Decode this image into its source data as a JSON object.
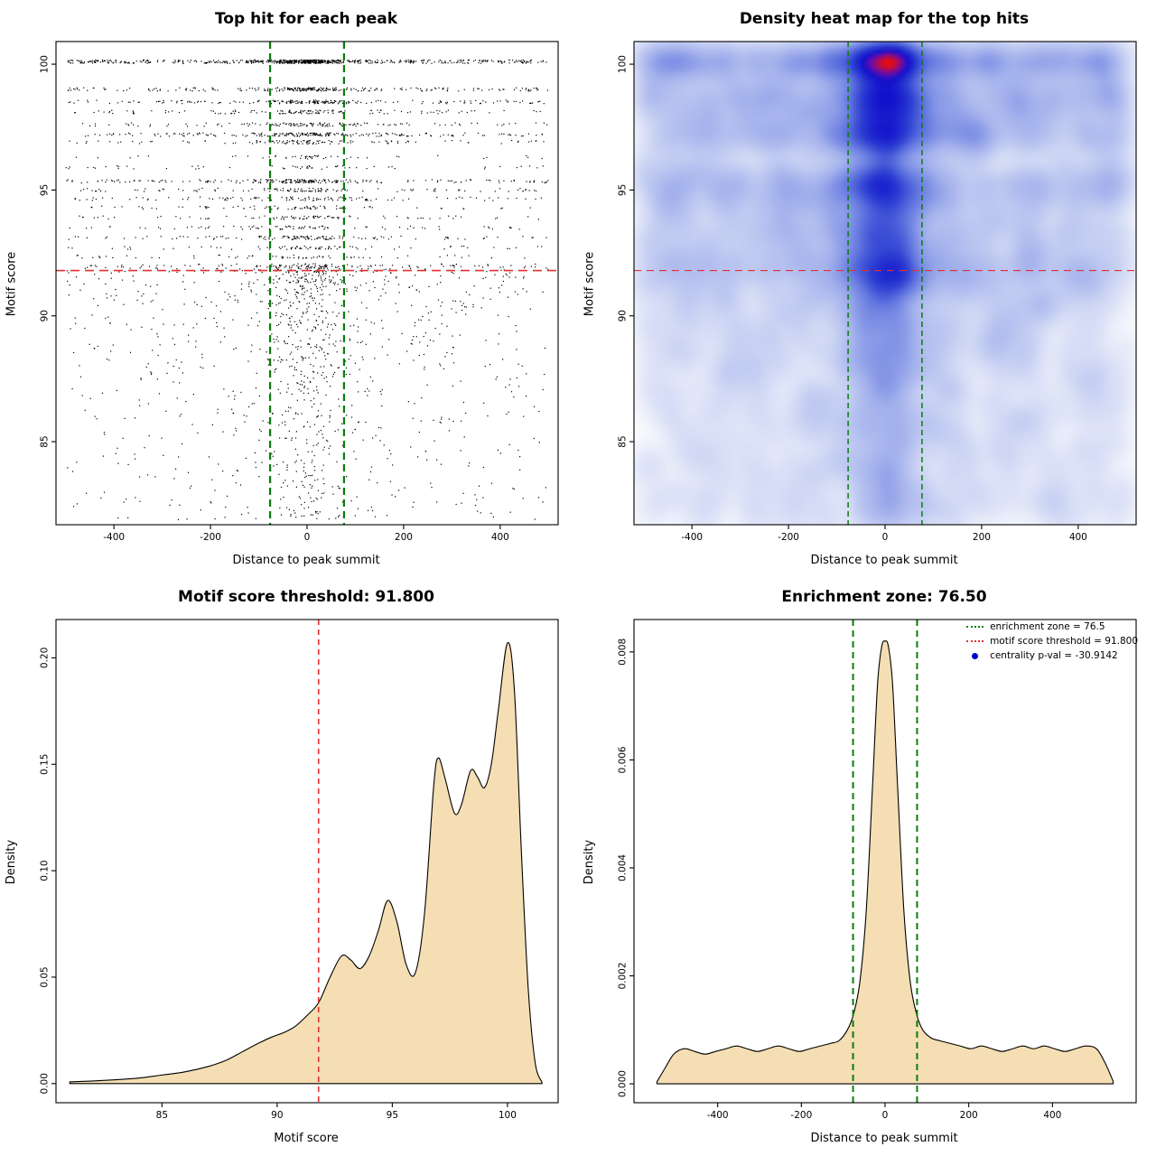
{
  "figure": {
    "background": "#ffffff",
    "layout": "2x2"
  },
  "chart_data": [
    {
      "type": "scatter",
      "title": "Top hit for each peak",
      "xlabel": "Distance to peak summit",
      "ylabel": "Motif score",
      "xlim": [
        -520,
        520
      ],
      "ylim": [
        81.7,
        100.9
      ],
      "xticks": [
        -400,
        -200,
        0,
        200,
        400
      ],
      "yticks": [
        85,
        90,
        95,
        100
      ],
      "point_color": "#000000",
      "hline": {
        "y": 91.8,
        "color": "#e03131",
        "dash": [
          10,
          6
        ],
        "width": 1.7
      },
      "vlines": {
        "x": [
          -76.5,
          76.5
        ],
        "color": "#0a7d0a",
        "dash": [
          8,
          5
        ],
        "width": 2.2
      },
      "point_model": {
        "seed": 1234,
        "n": 4200,
        "bands": [
          [
            100.1,
            0.16
          ],
          [
            99.0,
            0.06
          ],
          [
            98.5,
            0.05
          ],
          [
            98.1,
            0.03
          ],
          [
            97.6,
            0.035
          ],
          [
            97.2,
            0.05
          ],
          [
            96.9,
            0.03
          ],
          [
            96.3,
            0.012
          ],
          [
            95.9,
            0.015
          ],
          [
            95.35,
            0.05
          ],
          [
            95.0,
            0.03
          ],
          [
            94.65,
            0.025
          ],
          [
            94.3,
            0.02
          ],
          [
            93.9,
            0.022
          ],
          [
            93.5,
            0.02
          ],
          [
            93.1,
            0.03
          ],
          [
            92.7,
            0.02
          ],
          [
            92.35,
            0.015
          ],
          [
            92.0,
            0.012
          ]
        ],
        "band_jitter": 0.07,
        "tail": {
          "weight": 0.314,
          "top": 92.0,
          "depth": 10.2,
          "power": 1.7
        },
        "x_mixture": {
          "core_prob": 0.3,
          "core_sd": 38,
          "mid_prob": 0.16,
          "mid_sd": 110,
          "uniform_range": [
            -500,
            500
          ]
        }
      }
    },
    {
      "type": "heatmap",
      "title": "Density heat map for the top hits",
      "xlabel": "Distance to peak summit",
      "ylabel": "Motif score",
      "xlim": [
        -520,
        520
      ],
      "ylim": [
        81.7,
        100.9
      ],
      "xticks": [
        -400,
        -200,
        0,
        200,
        400
      ],
      "yticks": [
        85,
        90,
        95,
        100
      ],
      "hline": {
        "y": 91.8,
        "color": "#e03131",
        "dash": [
          8,
          6
        ],
        "width": 1.2
      },
      "vlines": {
        "x": [
          -76.5,
          76.5
        ],
        "color": "#0a7d0a",
        "dash": [
          6,
          4
        ],
        "width": 1.5
      },
      "density": {
        "source": "chart:0",
        "grid_nx": 150,
        "grid_ny": 120,
        "sigma_x": 22,
        "sigma_y": 0.5,
        "gamma": 0.42,
        "colormap": [
          [
            0,
            "#ffffff"
          ],
          [
            0.1,
            "#eef1fb"
          ],
          [
            0.25,
            "#ced6f4"
          ],
          [
            0.42,
            "#a2b0ec"
          ],
          [
            0.58,
            "#6579e0"
          ],
          [
            0.72,
            "#2c3ed2"
          ],
          [
            0.84,
            "#1111cc"
          ],
          [
            0.92,
            "#6d0daa"
          ],
          [
            1,
            "#e80c0c"
          ]
        ]
      }
    },
    {
      "type": "area",
      "title": "Motif score threshold: 91.800",
      "xlabel": "Motif score",
      "ylabel": "Density",
      "xlim": [
        80.4,
        102.2
      ],
      "ylim": [
        -0.009,
        0.218
      ],
      "xticks": [
        85,
        90,
        95,
        100
      ],
      "yticks": [
        0,
        0.05,
        0.1,
        0.15,
        0.2
      ],
      "ytick_labels": [
        "0.00",
        "0.05",
        "0.10",
        "0.15",
        "0.20"
      ],
      "fill": "#f5deb3",
      "stroke": "#000000",
      "vlines": {
        "x": [
          91.8
        ],
        "color": "#e03131",
        "dash": [
          6,
          5
        ],
        "width": 1.6
      },
      "curve": {
        "x": [
          81.0,
          82,
          83,
          84,
          85,
          86,
          87,
          87.8,
          88.5,
          89.2,
          89.8,
          90.3,
          90.8,
          91.3,
          91.8,
          92.3,
          92.8,
          93.2,
          93.6,
          94.0,
          94.4,
          94.8,
          95.2,
          95.6,
          96.0,
          96.4,
          96.8,
          97.0,
          97.3,
          97.7,
          98.0,
          98.4,
          98.7,
          99.0,
          99.3,
          99.6,
          100.0,
          100.3,
          100.6,
          100.9,
          101.2,
          101.5
        ],
        "y": [
          0.0008,
          0.0012,
          0.0018,
          0.0026,
          0.004,
          0.0055,
          0.008,
          0.011,
          0.015,
          0.019,
          0.022,
          0.024,
          0.027,
          0.032,
          0.038,
          0.05,
          0.06,
          0.058,
          0.054,
          0.06,
          0.072,
          0.086,
          0.076,
          0.056,
          0.052,
          0.08,
          0.14,
          0.153,
          0.143,
          0.127,
          0.131,
          0.147,
          0.144,
          0.139,
          0.15,
          0.175,
          0.207,
          0.185,
          0.11,
          0.045,
          0.01,
          0.0005
        ]
      }
    },
    {
      "type": "area",
      "title": "Enrichment zone: 76.50",
      "xlabel": "Distance to peak summit",
      "ylabel": "Density",
      "xlim": [
        -600,
        600
      ],
      "ylim": [
        -0.00035,
        0.0086
      ],
      "xticks": [
        -400,
        -200,
        0,
        200,
        400
      ],
      "yticks": [
        0,
        0.002,
        0.004,
        0.006,
        0.008
      ],
      "ytick_labels": [
        "0.000",
        "0.002",
        "0.004",
        "0.006",
        "0.008"
      ],
      "fill": "#f5deb3",
      "stroke": "#000000",
      "vlines": {
        "x": [
          -76.5,
          76.5
        ],
        "color": "#0a7d0a",
        "dash": [
          7,
          5
        ],
        "width": 2
      },
      "curve": {
        "x": [
          -545,
          -525,
          -505,
          -480,
          -455,
          -430,
          -405,
          -380,
          -355,
          -330,
          -305,
          -280,
          -255,
          -230,
          -205,
          -180,
          -155,
          -130,
          -110,
          -90,
          -75,
          -60,
          -45,
          -30,
          -18,
          -8,
          0,
          8,
          18,
          30,
          45,
          60,
          75,
          90,
          110,
          130,
          155,
          180,
          205,
          230,
          255,
          280,
          305,
          330,
          355,
          380,
          405,
          430,
          455,
          480,
          505,
          525,
          545
        ],
        "y": [
          4e-05,
          0.0003,
          0.00055,
          0.00065,
          0.0006,
          0.00055,
          0.0006,
          0.00065,
          0.0007,
          0.00065,
          0.0006,
          0.00065,
          0.0007,
          0.00065,
          0.0006,
          0.00065,
          0.0007,
          0.00075,
          0.0008,
          0.001,
          0.0013,
          0.0019,
          0.0032,
          0.0055,
          0.0074,
          0.0081,
          0.0082,
          0.0081,
          0.0074,
          0.0055,
          0.0032,
          0.0019,
          0.0013,
          0.001,
          0.00085,
          0.0008,
          0.00075,
          0.0007,
          0.00065,
          0.0007,
          0.00065,
          0.0006,
          0.00065,
          0.0007,
          0.00065,
          0.0007,
          0.00065,
          0.0006,
          0.00065,
          0.0007,
          0.00065,
          0.0004,
          5e-05
        ]
      },
      "legend": {
        "items": [
          {
            "label": "enrichment zone = 76.5",
            "color": "#0a7d0a",
            "marker": "dotted-line"
          },
          {
            "label": "motif score threshold = 91.800",
            "color": "#e03131",
            "marker": "dotted-line"
          },
          {
            "label": "centrality p-val = -30.9142",
            "color": "#0000cc",
            "marker": "point"
          }
        ]
      }
    }
  ]
}
